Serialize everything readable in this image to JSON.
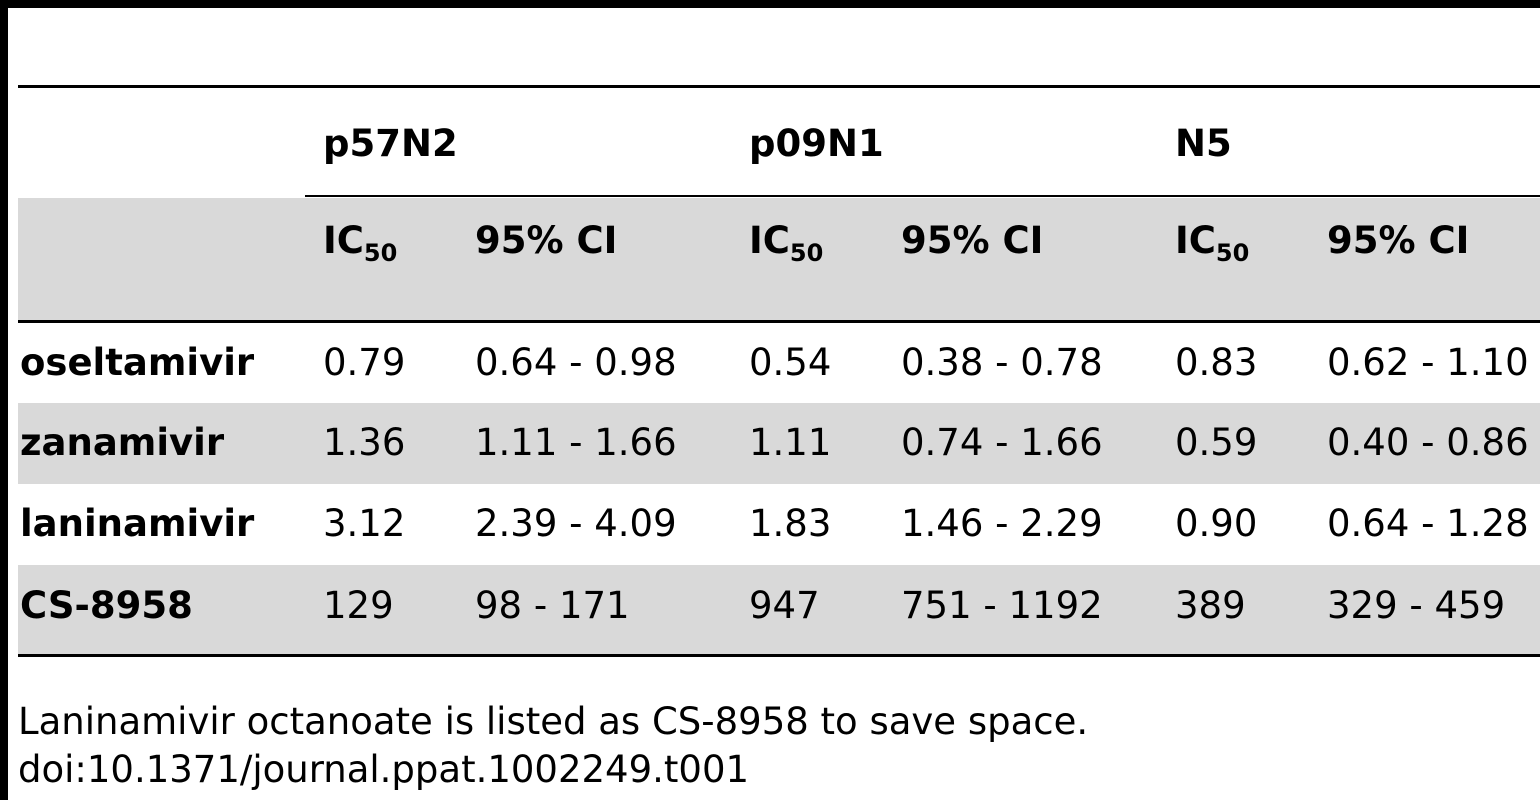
{
  "table": {
    "groups": [
      "p57N2",
      "p09N1",
      "N5"
    ],
    "subheaders": {
      "ic_base": "IC",
      "ic_sub": "50",
      "ci": "95% CI"
    },
    "rows": [
      {
        "drug": "oseltamivir",
        "cells": [
          "0.79",
          "0.64 - 0.98",
          "0.54",
          "0.38 - 0.78",
          "0.83",
          "0.62 - 1.10"
        ]
      },
      {
        "drug": "zanamivir",
        "cells": [
          "1.36",
          "1.11 - 1.66",
          "1.11",
          "0.74 - 1.66",
          "0.59",
          "0.40 - 0.86"
        ]
      },
      {
        "drug": "laninamivir",
        "cells": [
          "3.12",
          "2.39 - 4.09",
          "1.83",
          "1.46 - 2.29",
          "0.90",
          "0.64 - 1.28"
        ]
      },
      {
        "drug": "CS-8958",
        "cells": [
          "129",
          "98 - 171",
          "947",
          "751 - 1192",
          "389",
          "329 - 459"
        ]
      }
    ]
  },
  "footnote": "Laninamivir octanoate is listed as CS-8958 to save space.",
  "doi": "doi:10.1371/journal.ppat.1002249.t001",
  "colors": {
    "shade": "#d9d9d9",
    "rule": "#000000"
  }
}
